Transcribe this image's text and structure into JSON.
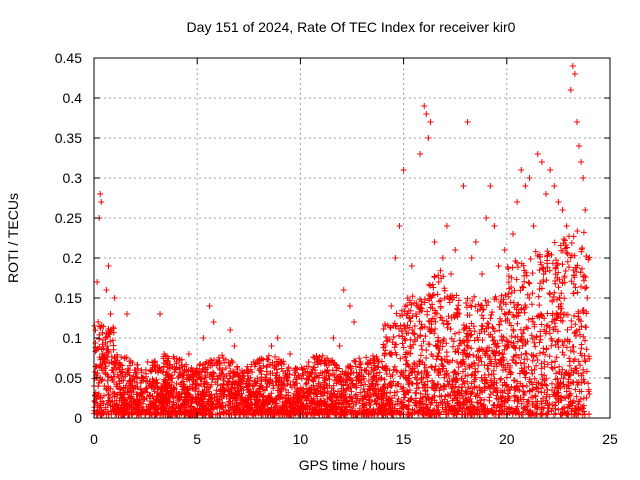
{
  "chart_data": {
    "type": "scatter",
    "title": "Day 151 of 2024, Rate Of TEC Index for receiver kir0",
    "xlabel": "GPS time / hours",
    "ylabel": "ROTI / TECUs",
    "xlim": [
      0,
      25
    ],
    "ylim": [
      0,
      0.45
    ],
    "xticks": [
      0,
      5,
      10,
      15,
      20,
      25
    ],
    "xtick_labels": [
      "0",
      "5",
      "10",
      "15",
      "20",
      "25"
    ],
    "yticks": [
      0,
      0.05,
      0.1,
      0.15,
      0.2,
      0.25,
      0.3,
      0.35,
      0.4,
      0.45
    ],
    "ytick_labels": [
      "0",
      "0.05",
      "0.1",
      "0.15",
      "0.2",
      "0.25",
      "0.3",
      "0.35",
      "0.4",
      "0.45"
    ],
    "grid": true,
    "marker": "+",
    "color": "#ff0000",
    "series": [
      {
        "points": [
          [
            0.05,
            0.02
          ],
          [
            0.1,
            0.05
          ],
          [
            0.15,
            0.17
          ],
          [
            0.2,
            0.12
          ],
          [
            0.25,
            0.25
          ],
          [
            0.3,
            0.28
          ],
          [
            0.35,
            0.27
          ],
          [
            0.4,
            0.08
          ],
          [
            0.5,
            0.04
          ],
          [
            0.6,
            0.16
          ],
          [
            0.7,
            0.19
          ],
          [
            0.8,
            0.13
          ],
          [
            0.9,
            0.06
          ],
          [
            1.0,
            0.15
          ],
          [
            1.2,
            0.05
          ],
          [
            1.4,
            0.03
          ],
          [
            1.6,
            0.13
          ],
          [
            1.8,
            0.04
          ],
          [
            2.0,
            0.06
          ],
          [
            2.3,
            0.05
          ],
          [
            2.6,
            0.07
          ],
          [
            2.9,
            0.04
          ],
          [
            3.2,
            0.13
          ],
          [
            3.4,
            0.08
          ],
          [
            3.7,
            0.05
          ],
          [
            4.0,
            0.07
          ],
          [
            4.3,
            0.06
          ],
          [
            4.6,
            0.08
          ],
          [
            5.0,
            0.06
          ],
          [
            5.3,
            0.1
          ],
          [
            5.6,
            0.14
          ],
          [
            5.8,
            0.12
          ],
          [
            6.0,
            0.07
          ],
          [
            6.3,
            0.05
          ],
          [
            6.6,
            0.11
          ],
          [
            6.8,
            0.09
          ],
          [
            7.1,
            0.05
          ],
          [
            7.4,
            0.06
          ],
          [
            7.7,
            0.04
          ],
          [
            8.0,
            0.06
          ],
          [
            8.3,
            0.05
          ],
          [
            8.6,
            0.09
          ],
          [
            8.9,
            0.1
          ],
          [
            9.2,
            0.05
          ],
          [
            9.5,
            0.08
          ],
          [
            9.8,
            0.05
          ],
          [
            10.1,
            0.06
          ],
          [
            10.4,
            0.07
          ],
          [
            10.7,
            0.05
          ],
          [
            11.0,
            0.07
          ],
          [
            11.3,
            0.06
          ],
          [
            11.6,
            0.1
          ],
          [
            11.9,
            0.09
          ],
          [
            12.1,
            0.16
          ],
          [
            12.4,
            0.14
          ],
          [
            12.6,
            0.12
          ],
          [
            12.9,
            0.07
          ],
          [
            13.2,
            0.06
          ],
          [
            13.5,
            0.05
          ],
          [
            13.8,
            0.07
          ],
          [
            14.1,
            0.09
          ],
          [
            14.4,
            0.14
          ],
          [
            14.6,
            0.2
          ],
          [
            14.8,
            0.24
          ],
          [
            15.0,
            0.31
          ],
          [
            15.2,
            0.15
          ],
          [
            15.4,
            0.19
          ],
          [
            15.6,
            0.13
          ],
          [
            15.8,
            0.33
          ],
          [
            16.0,
            0.39
          ],
          [
            16.1,
            0.38
          ],
          [
            16.2,
            0.35
          ],
          [
            16.3,
            0.37
          ],
          [
            16.5,
            0.22
          ],
          [
            16.7,
            0.17
          ],
          [
            16.9,
            0.2
          ],
          [
            17.1,
            0.24
          ],
          [
            17.3,
            0.18
          ],
          [
            17.5,
            0.21
          ],
          [
            17.7,
            0.13
          ],
          [
            17.9,
            0.29
          ],
          [
            18.1,
            0.37
          ],
          [
            18.3,
            0.2
          ],
          [
            18.5,
            0.22
          ],
          [
            18.8,
            0.18
          ],
          [
            19.0,
            0.25
          ],
          [
            19.2,
            0.29
          ],
          [
            19.4,
            0.24
          ],
          [
            19.6,
            0.19
          ],
          [
            19.9,
            0.21
          ],
          [
            20.1,
            0.17
          ],
          [
            20.3,
            0.23
          ],
          [
            20.5,
            0.27
          ],
          [
            20.7,
            0.31
          ],
          [
            20.9,
            0.29
          ],
          [
            21.1,
            0.3
          ],
          [
            21.3,
            0.24
          ],
          [
            21.5,
            0.33
          ],
          [
            21.7,
            0.32
          ],
          [
            21.9,
            0.28
          ],
          [
            22.1,
            0.31
          ],
          [
            22.3,
            0.29
          ],
          [
            22.5,
            0.27
          ],
          [
            22.7,
            0.26
          ],
          [
            22.9,
            0.24
          ],
          [
            23.1,
            0.41
          ],
          [
            23.2,
            0.44
          ],
          [
            23.3,
            0.43
          ],
          [
            23.4,
            0.37
          ],
          [
            23.5,
            0.34
          ],
          [
            23.6,
            0.32
          ],
          [
            23.7,
            0.3
          ],
          [
            23.8,
            0.26
          ],
          [
            23.9,
            0.15
          ],
          [
            24.0,
            0.03
          ]
        ]
      }
    ]
  }
}
